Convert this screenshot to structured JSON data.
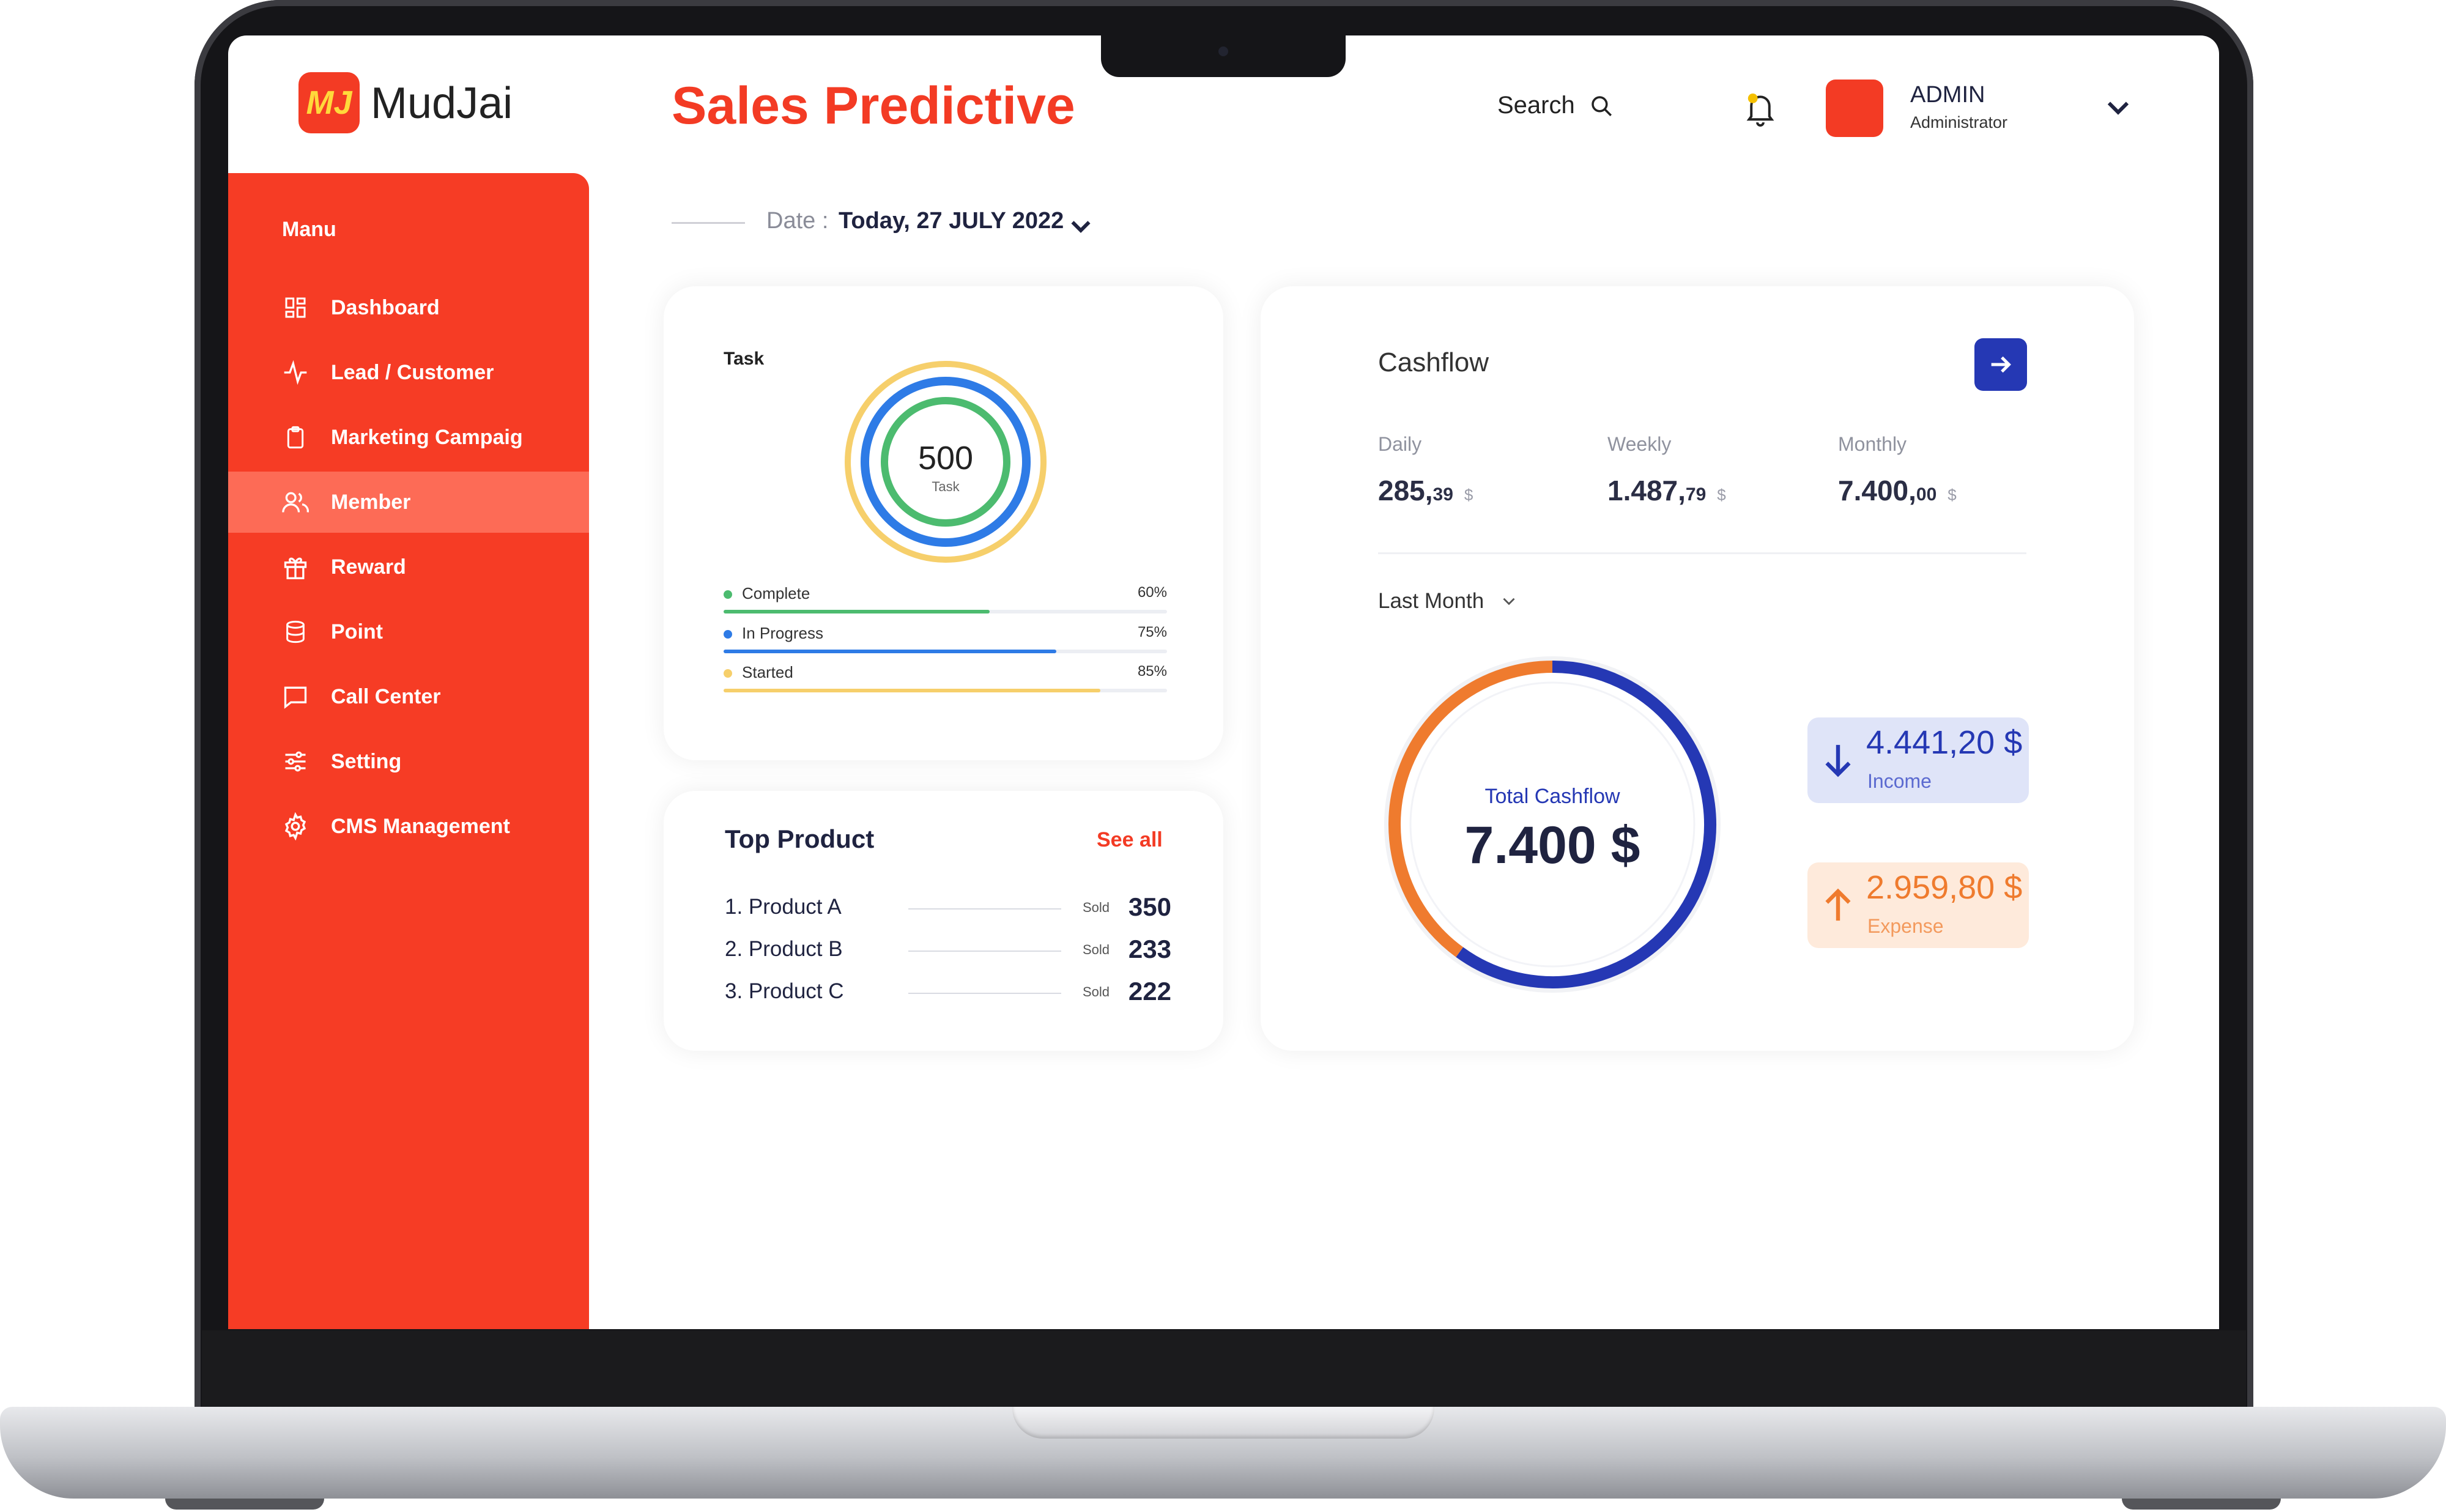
{
  "brand": {
    "logo_mark": "MJ",
    "name": "MudJai"
  },
  "header": {
    "title": "Sales Predictive",
    "search_label": "Search",
    "user_name": "ADMIN",
    "user_role": "Administrator"
  },
  "sidebar": {
    "menu_label": "Manu",
    "active_index": 3,
    "items": [
      {
        "label": "Dashboard",
        "icon": "grid-icon"
      },
      {
        "label": "Lead / Customer",
        "icon": "activity-icon"
      },
      {
        "label": "Marketing Campaig",
        "icon": "clipboard-icon"
      },
      {
        "label": "Member",
        "icon": "users-icon"
      },
      {
        "label": "Reward",
        "icon": "gift-icon"
      },
      {
        "label": "Point",
        "icon": "database-icon"
      },
      {
        "label": "Call Center",
        "icon": "chat-icon"
      },
      {
        "label": "Setting",
        "icon": "sliders-icon"
      },
      {
        "label": "CMS Management",
        "icon": "gear-icon"
      }
    ]
  },
  "date": {
    "label": "Date :",
    "value": "Today, 27 JULY 2022"
  },
  "task": {
    "title": "Task",
    "total": "500",
    "total_label": "Task",
    "rows": [
      {
        "label": "Complete",
        "percent_text": "60%",
        "percent": 60,
        "color": "#4cbb6f"
      },
      {
        "label": "In Progress",
        "percent_text": "75%",
        "percent": 75,
        "color": "#2e7be6"
      },
      {
        "label": "Started",
        "percent_text": "85%",
        "percent": 85,
        "color": "#f6cf6b"
      }
    ]
  },
  "top_product": {
    "title": "Top Product",
    "see_all": "See all",
    "sold_label": "Sold",
    "items": [
      {
        "name": "1. Product A",
        "sold": "350"
      },
      {
        "name": "2. Product B",
        "sold": "233"
      },
      {
        "name": "3. Product C",
        "sold": "222"
      }
    ]
  },
  "cashflow": {
    "title": "Cashflow",
    "periods": [
      {
        "label": "Daily",
        "whole": "285,",
        "decimal": "39",
        "currency": "$"
      },
      {
        "label": "Weekly",
        "whole": "1.487,",
        "decimal": "79",
        "currency": "$"
      },
      {
        "label": "Monthly",
        "whole": "7.400,",
        "decimal": "00",
        "currency": "$"
      }
    ],
    "range_label": "Last Month",
    "total_label": "Total Cashflow",
    "total_value": "7.400 $",
    "income": {
      "value": "4.441,20 $",
      "label": "Income",
      "amount": 4441.2,
      "color": "#2538b4"
    },
    "expense": {
      "value": "2.959,80 $",
      "label": "Expense",
      "amount": 2959.8,
      "color": "#ef7b2e"
    }
  },
  "colors": {
    "accent": "#f33b24",
    "sidebar": "#f63c25",
    "active_item": "#fd6b56",
    "navy": "#2538b4"
  }
}
